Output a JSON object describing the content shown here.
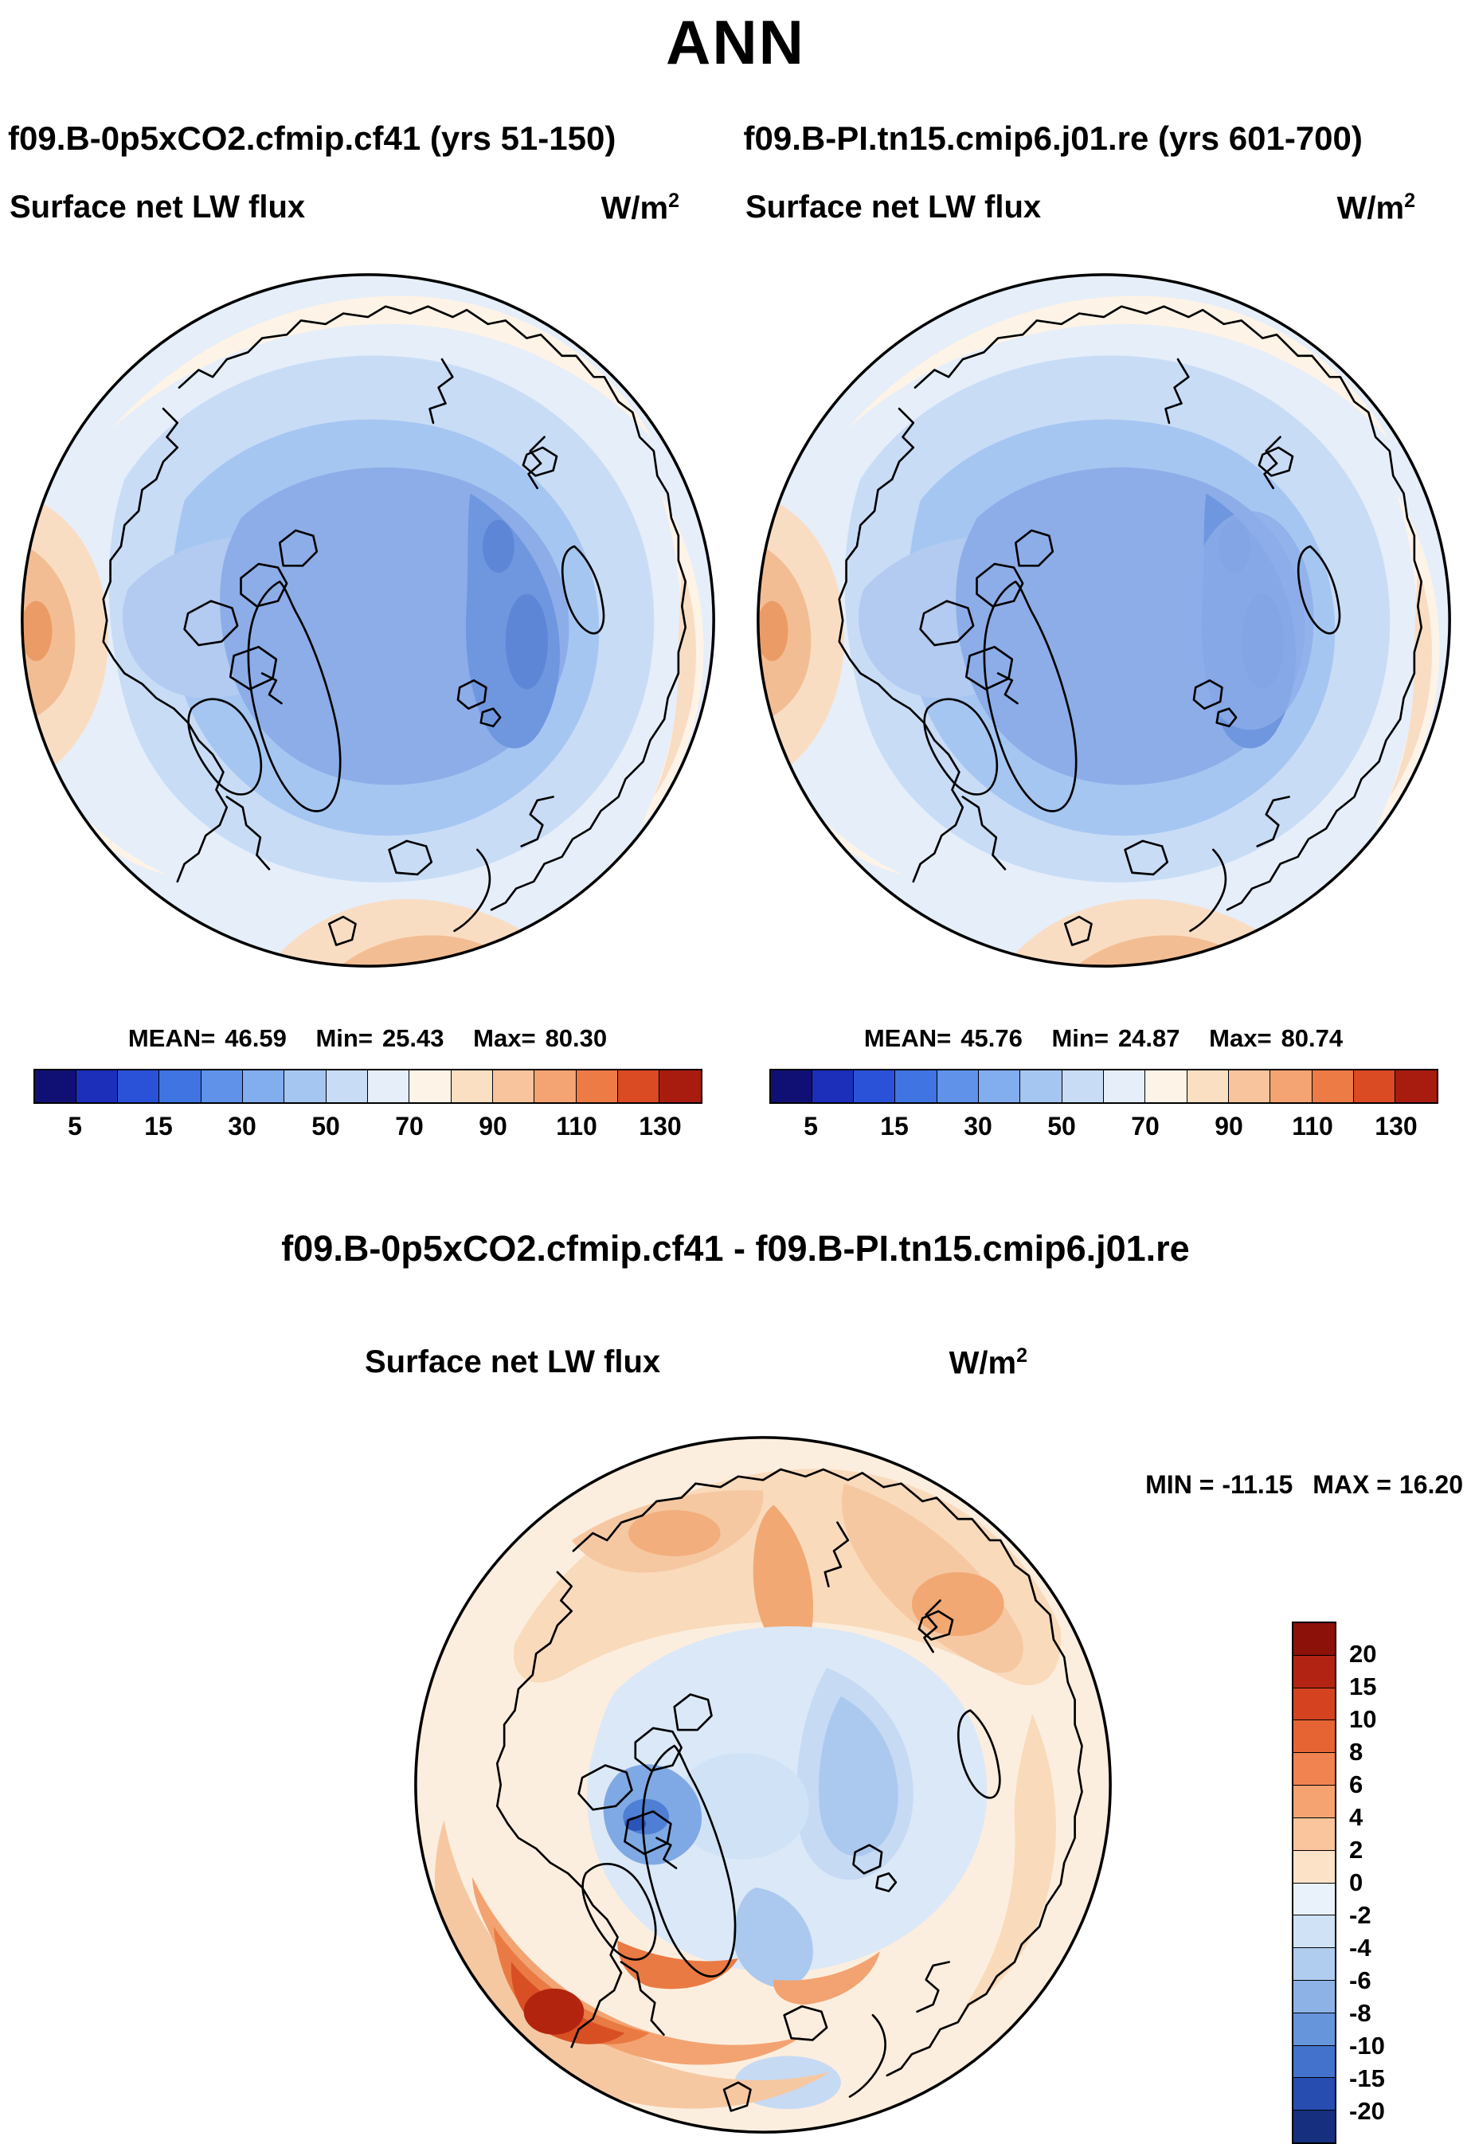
{
  "title": "ANN",
  "header": {
    "run_left": "f09.B-0p5xCO2.cfmip.cf41 (yrs 51-150)",
    "run_right": "f09.B-PI.tn15.cmip6.j01.re (yrs 601-700)"
  },
  "diff_title": "f09.B-0p5xCO2.cfmip.cf41 - f09.B-PI.tn15.cmip6.j01.re",
  "panels": {
    "left": {
      "field_label": "Surface net LW flux",
      "units_base": "W/m",
      "units_exp": "2",
      "stats": {
        "mean_label": "MEAN=",
        "mean": "46.59",
        "min_label": "Min=",
        "min": "25.43",
        "max_label": "Max=",
        "max": "80.30"
      }
    },
    "right": {
      "field_label": "Surface net LW flux",
      "units_base": "W/m",
      "units_exp": "2",
      "stats": {
        "mean_label": "MEAN=",
        "mean": "45.76",
        "min_label": "Min=",
        "min": "24.87",
        "max_label": "Max=",
        "max": "80.74"
      }
    },
    "diff": {
      "field_label": "Surface net LW flux",
      "units_base": "W/m",
      "units_exp": "2",
      "minmax": {
        "min_label": "MIN =",
        "min": "-11.15",
        "max_label": "MAX =",
        "max": "16.20"
      }
    }
  },
  "colorbar_top": {
    "orientation": "horizontal",
    "colors": [
      "#101074",
      "#1b2fba",
      "#2a52d8",
      "#3f74e2",
      "#5f92e8",
      "#82adee",
      "#a6c6f2",
      "#c8dcf6",
      "#e5eef9",
      "#fdf3e7",
      "#fbdfc3",
      "#f8c49d",
      "#f4a372",
      "#ec7b46",
      "#da4a23",
      "#a81c10"
    ],
    "tick_labels": [
      "5",
      "15",
      "30",
      "50",
      "70",
      "90",
      "110",
      "130"
    ]
  },
  "colorbar_diff": {
    "orientation": "vertical",
    "colors": [
      "#8c1108",
      "#b32313",
      "#d4421f",
      "#e66434",
      "#f08350",
      "#f6a372",
      "#fac49c",
      "#fce3c8",
      "#e9f1fb",
      "#cfe2f6",
      "#b0cdef",
      "#8db3e6",
      "#6795db",
      "#4272cc",
      "#264daf",
      "#16307f"
    ],
    "tick_labels": [
      "20",
      "15",
      "10",
      "8",
      "6",
      "4",
      "2",
      "0",
      "-2",
      "-4",
      "-6",
      "-8",
      "-10",
      "-15",
      "-20"
    ]
  },
  "chart_data": [
    {
      "type": "heatmap",
      "subtype": "polar_stereographic_map_north",
      "title": "Surface net LW flux",
      "units": "W/m^2",
      "case": "f09.B-0p5xCO2.cfmip.cf41 (yrs 51-150)",
      "stats": {
        "mean": 46.59,
        "min": 25.43,
        "max": 80.3
      },
      "colorbar_ticks": [
        5,
        15,
        30,
        50,
        70,
        90,
        110,
        130
      ],
      "colorbar_orientation": "horizontal",
      "palette": "dark-blue to white to dark-red",
      "value_pattern": "lowest values (~25-45, blues) over central Arctic Ocean sea ice; mid values (~50-60, pale) over subpolar land; highest values (~65-80, warm colors) at map rim over North Pacific, North Atlantic and continental edges"
    },
    {
      "type": "heatmap",
      "subtype": "polar_stereographic_map_north",
      "title": "Surface net LW flux",
      "units": "W/m^2",
      "case": "f09.B-PI.tn15.cmip6.j01.re (yrs 601-700)",
      "stats": {
        "mean": 45.76,
        "min": 24.87,
        "max": 80.74
      },
      "colorbar_ticks": [
        5,
        15,
        30,
        50,
        70,
        90,
        110,
        130
      ],
      "colorbar_orientation": "horizontal",
      "palette": "dark-blue to white to dark-red",
      "value_pattern": "nearly identical spatial pattern to case 1 with slightly more uniform blues over the central Arctic"
    },
    {
      "type": "heatmap",
      "subtype": "polar_stereographic_map_north",
      "title": "Surface net LW flux difference",
      "units": "W/m^2",
      "case": "f09.B-0p5xCO2.cfmip.cf41 - f09.B-PI.tn15.cmip6.j01.re",
      "stats": {
        "min": -11.15,
        "max": 16.2
      },
      "colorbar_ticks": [
        20,
        15,
        10,
        8,
        6,
        4,
        2,
        0,
        -2,
        -4,
        -6,
        -8,
        -10,
        -15,
        -20
      ],
      "colorbar_orientation": "vertical",
      "palette": "dark-red (positive) to white to dark-blue (negative)",
      "value_pattern": "weak positive (+1 to +6) over most periphery and Siberia; strongest positive (+8 to +16, reds) over Labrador Sea / North Atlantic at lower left; negative (-2 to -11, blues) over Canadian Archipelago and central Arctic Ocean"
    }
  ]
}
